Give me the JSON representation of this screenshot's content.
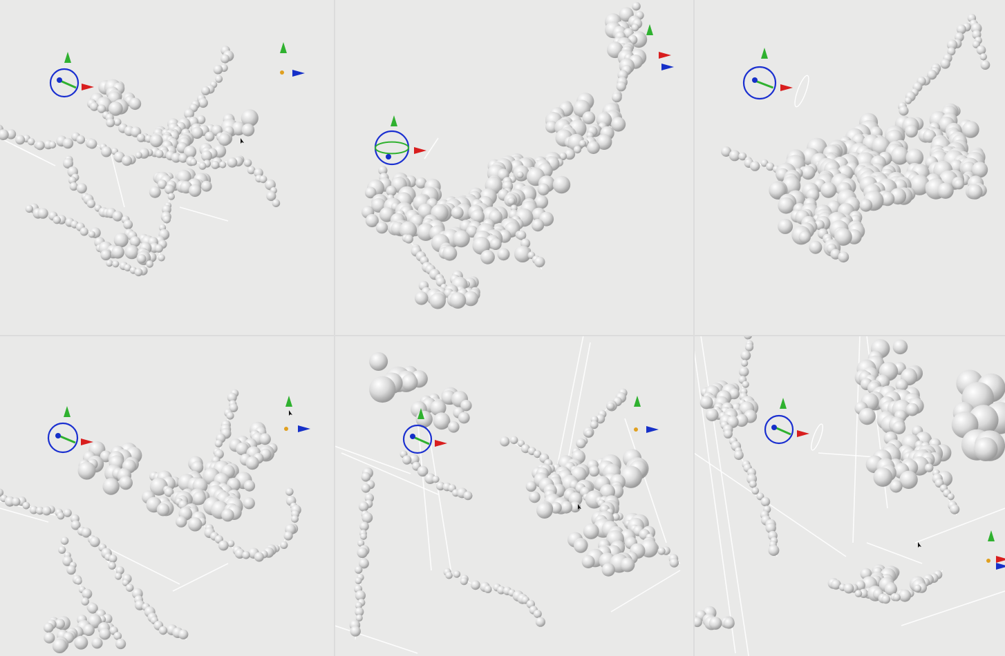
{
  "figure": {
    "layout": {
      "rows": 2,
      "cols": 3
    },
    "colors": {
      "background": "#e9e9e8",
      "sphere_light": "#ffffff",
      "sphere_mid": "#d9d9d9",
      "sphere_dark": "#9a9a9a",
      "edge": "#ffffff",
      "gizmo_ring": "#1a2fd0",
      "gizmo_green": "#2fb12f",
      "gizmo_red": "#d81e1e",
      "gizmo_blue": "#1630c8",
      "gizmo_orange": "#e0a020"
    },
    "panels": [
      {
        "id": "top-left",
        "density": "medium",
        "seed": 11
      },
      {
        "id": "top-middle",
        "density": "dense",
        "seed": 23
      },
      {
        "id": "top-right",
        "density": "dense",
        "seed": 37
      },
      {
        "id": "bottom-left",
        "density": "medium",
        "seed": 41
      },
      {
        "id": "bottom-middle",
        "density": "sparse",
        "seed": 53
      },
      {
        "id": "bottom-right",
        "density": "sparse",
        "seed": 67
      }
    ]
  }
}
